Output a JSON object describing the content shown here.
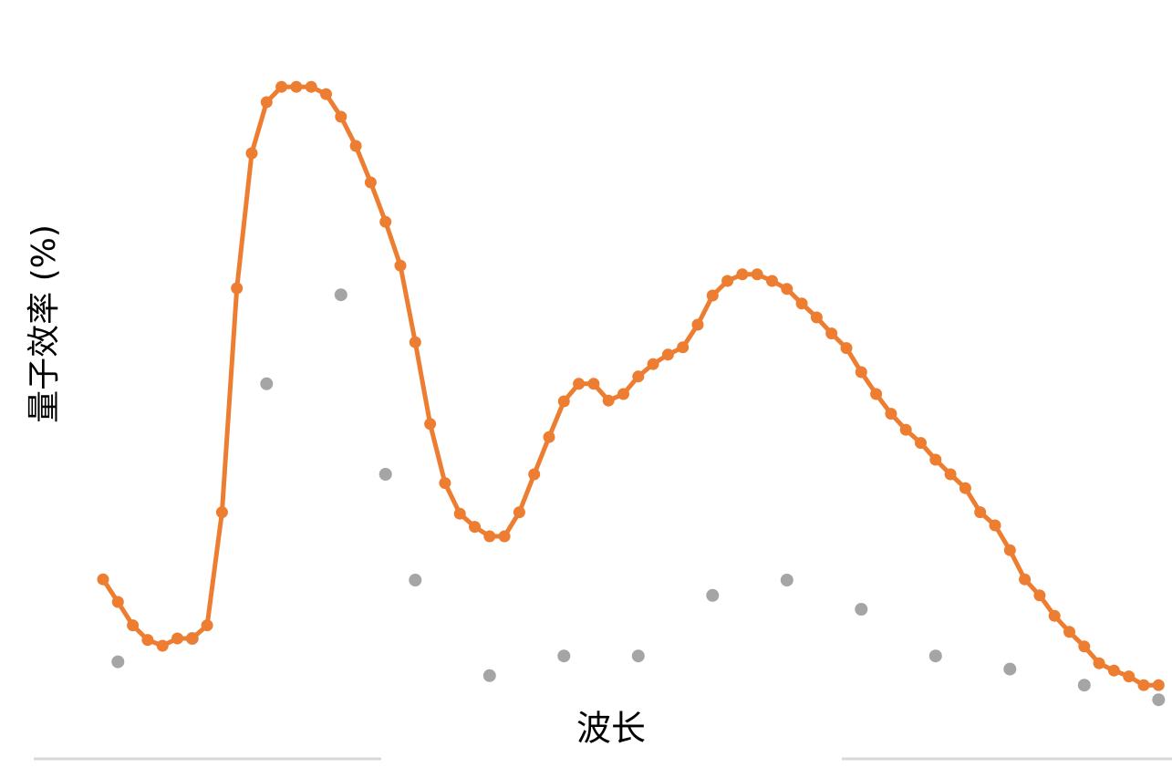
{
  "chart_data": {
    "type": "line",
    "title": "",
    "xlabel": "波长",
    "ylabel": "量子效率 (%)",
    "grid": false,
    "legend": "none",
    "series": [
      {
        "style": "line-with-markers",
        "color": "#ed7d31",
        "x": [
          0,
          1,
          2,
          3,
          4,
          5,
          6,
          7,
          8,
          9,
          10,
          11,
          12,
          13,
          14,
          15,
          16,
          17,
          18,
          19,
          20,
          21,
          22,
          23,
          24,
          25,
          26,
          27,
          28,
          29,
          30,
          31,
          32,
          33,
          34,
          35,
          36,
          37,
          38,
          39,
          40,
          41,
          42,
          43,
          44,
          45,
          46,
          47,
          48,
          49,
          50,
          51,
          52,
          53,
          54,
          55,
          56,
          57,
          58,
          59,
          60,
          61,
          62,
          63,
          64,
          65,
          66,
          67,
          68,
          69,
          70,
          71
        ],
        "y": [
          25.6,
          22.5,
          19.3,
          17.3,
          16.5,
          17.5,
          17.5,
          19.3,
          34.8,
          65.5,
          84,
          91,
          93.1,
          93.1,
          93.1,
          92.1,
          89,
          85,
          80,
          74.6,
          68.6,
          58.1,
          46.9,
          38.8,
          34.6,
          32.8,
          31.5,
          31.5,
          34.8,
          40,
          45.1,
          50,
          52.4,
          52.4,
          50.1,
          51,
          53.4,
          55.1,
          56.4,
          57.4,
          60.5,
          64.5,
          66.5,
          67.4,
          67.4,
          66.5,
          65.4,
          63.4,
          61.5,
          59.3,
          57.3,
          54,
          51,
          48.3,
          46.1,
          44.3,
          42,
          40,
          38.1,
          34.8,
          33,
          29.6,
          25.6,
          23.4,
          20.6,
          18.4,
          16.4,
          14.1,
          13.1,
          12.3,
          11.1,
          11.1
        ]
      },
      {
        "style": "scatter",
        "color": "#a5a5a5",
        "x": [
          1,
          6,
          11,
          16,
          19,
          21,
          26,
          31,
          36,
          41,
          46,
          51,
          56,
          61,
          66,
          71
        ],
        "y": [
          14.3,
          17.5,
          52.4,
          64.6,
          40,
          25.5,
          12.4,
          15.1,
          15.1,
          23.4,
          25.5,
          21.5,
          15.1,
          13.3,
          11.1,
          9.1
        ]
      }
    ],
    "axis_line_color": "#d9d9d9"
  }
}
